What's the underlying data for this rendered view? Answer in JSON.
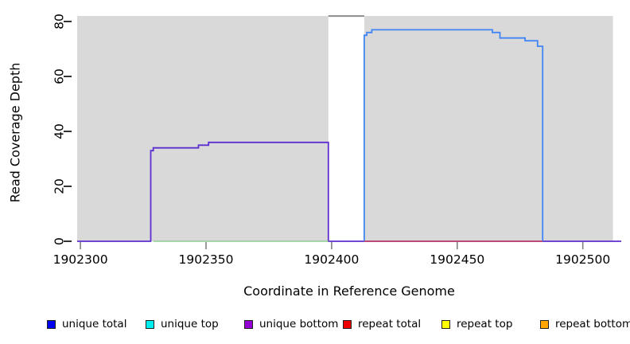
{
  "chart_data": {
    "type": "line",
    "subtype": "step-coverage",
    "title": "",
    "xlabel": "Coordinate in Reference Genome",
    "ylabel": "Read Coverage Depth",
    "xlim": [
      1902298.7,
      1902515.3
    ],
    "ylim": [
      0,
      82
    ],
    "x_ticks": [
      "1902300",
      "1902350",
      "1902400",
      "1902450",
      "1902500"
    ],
    "x_tick_values": [
      1902300,
      1902350,
      1902400,
      1902450,
      1902500
    ],
    "y_ticks": [
      "0",
      "20",
      "40",
      "60",
      "80"
    ],
    "y_tick_values": [
      0,
      20,
      40,
      60,
      80
    ],
    "grid": false,
    "legend_position": "bottom",
    "background_regions": [
      {
        "name": "left-coverage-region",
        "start": 1902298.7,
        "end": 1902398.7,
        "color": "#d9d9d9"
      },
      {
        "name": "right-coverage-region",
        "start": 1902413.0,
        "end": 1902512.0,
        "color": "#d9d9d9"
      }
    ],
    "gap_marker": {
      "start": 1902398.7,
      "end": 1902413.0,
      "value": 82,
      "color": "#8c8c8c",
      "width": 2
    },
    "series": [
      {
        "name": "unique bottom",
        "color": "#5d2fd0",
        "width": 1.8,
        "points": [
          [
            1902298.7,
            0
          ],
          [
            1902328,
            33
          ],
          [
            1902329,
            34
          ],
          [
            1902347,
            35
          ],
          [
            1902351,
            36
          ],
          [
            1902398.7,
            0
          ],
          [
            1902515.3,
            0
          ]
        ]
      },
      {
        "name": "zero baseline (green)",
        "color": "#7dc87d",
        "width": 1.2,
        "points": [
          [
            1902329,
            0
          ],
          [
            1902398.7,
            0
          ]
        ]
      },
      {
        "name": "unique total",
        "color": "#4285f4",
        "width": 1.8,
        "points": [
          [
            1902413,
            0
          ],
          [
            1902413,
            75
          ],
          [
            1902414,
            76
          ],
          [
            1902416,
            77
          ],
          [
            1902464,
            76
          ],
          [
            1902467,
            74
          ],
          [
            1902477,
            73
          ],
          [
            1902482,
            71
          ],
          [
            1902484,
            0
          ]
        ]
      },
      {
        "name": "repeat total",
        "color": "#dc4040",
        "width": 1.2,
        "points": [
          [
            1902413,
            0
          ],
          [
            1902484,
            0
          ]
        ]
      }
    ]
  },
  "labels": {
    "xlabel": "Coordinate in Reference Genome",
    "ylabel": "Read Coverage Depth"
  },
  "legend": {
    "items": [
      {
        "label": "unique total",
        "color": "#0000ee"
      },
      {
        "label": "unique top",
        "color": "#00eeee"
      },
      {
        "label": "unique bottom",
        "color": "#9400d3"
      },
      {
        "label": "repeat total",
        "color": "#ee0000"
      },
      {
        "label": "repeat top",
        "color": "#ffff00"
      },
      {
        "label": "repeat bottom",
        "color": "#ffa500"
      }
    ]
  },
  "axis_style": {
    "y_tick_color": "#000000",
    "x_tick_color": "#808080",
    "tick_label_size": 15.5
  }
}
